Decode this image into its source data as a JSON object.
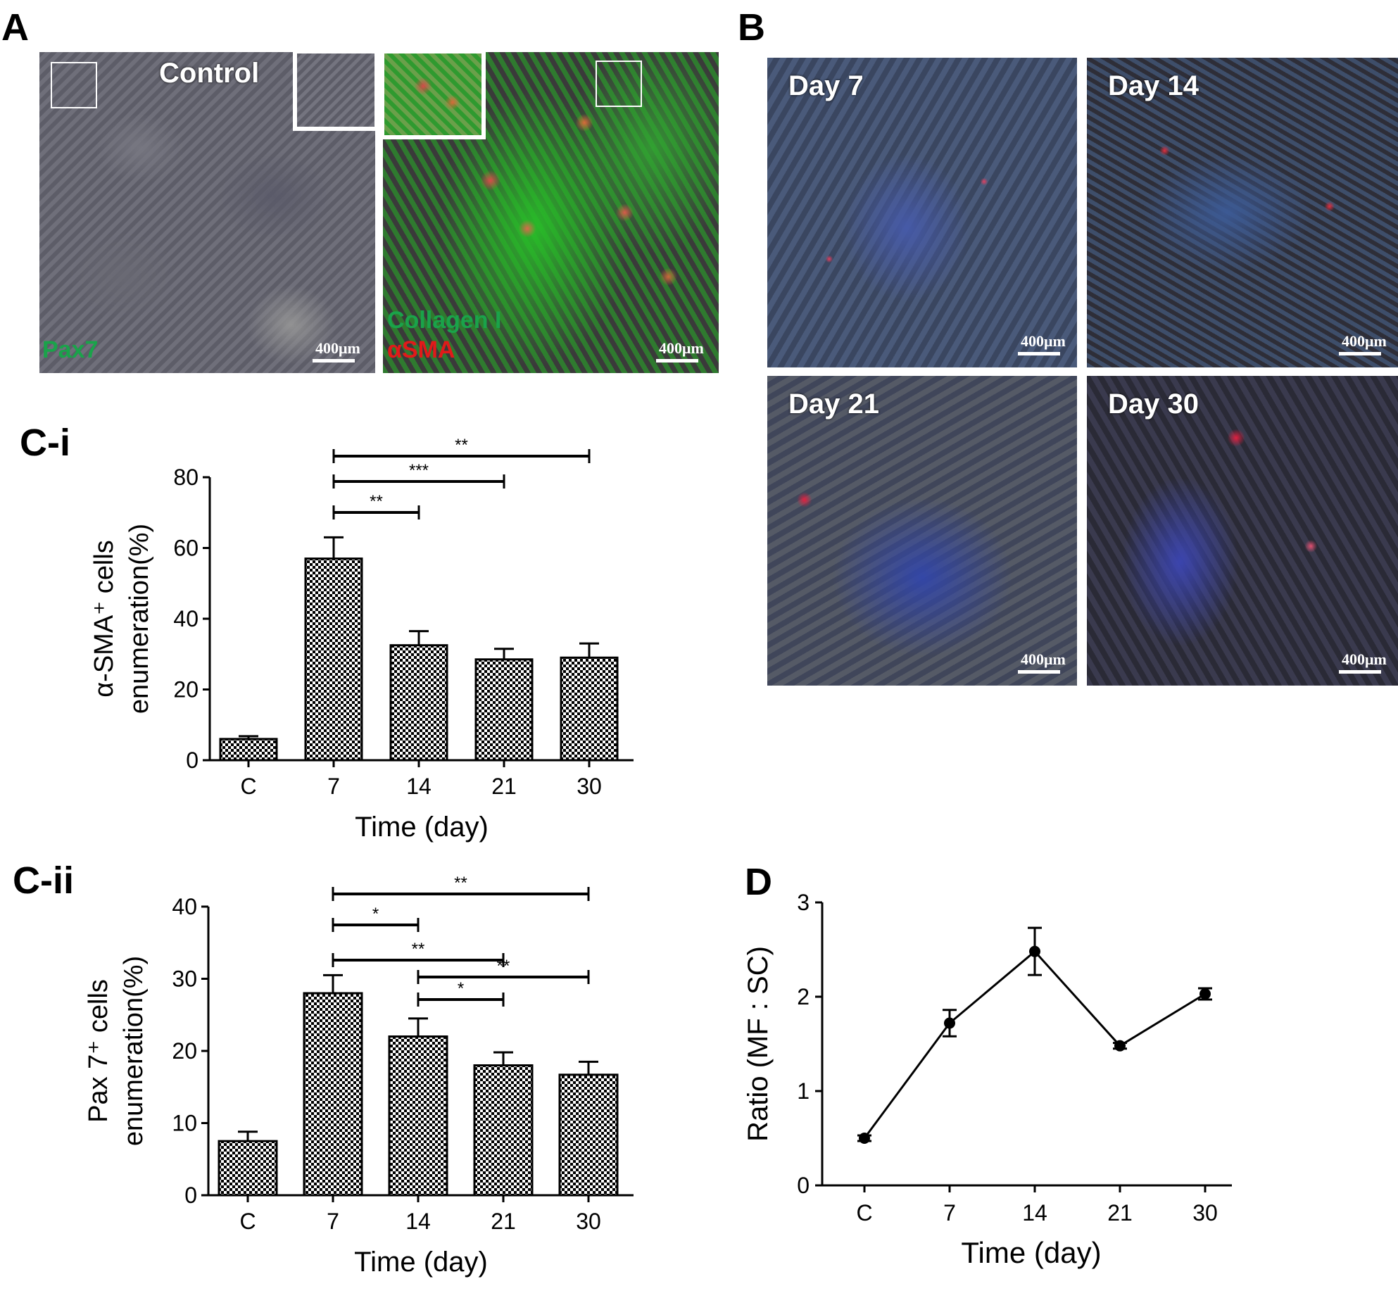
{
  "panels": {
    "A": {
      "letter": "A",
      "left_label": "Control",
      "left_stain": "Pax7",
      "right_stain_1": "Collagen I",
      "right_stain_2": "αSMA",
      "scale": "400μm"
    },
    "B": {
      "letter": "B",
      "tiles": [
        "Day 7",
        "Day 14",
        "Day 21",
        "Day 30"
      ],
      "scale": "400μm"
    },
    "Ci": {
      "letter": "C-i"
    },
    "Cii": {
      "letter": "C-ii"
    },
    "D": {
      "letter": "D"
    }
  },
  "chart_data": [
    {
      "id": "C-i",
      "type": "bar",
      "categories": [
        "C",
        "7",
        "14",
        "21",
        "30"
      ],
      "values": [
        6,
        57,
        32.5,
        28.5,
        29
      ],
      "errors": [
        0.8,
        6,
        4,
        3,
        4
      ],
      "xlabel": "Time (day)",
      "ylabel_line1": "α-SMA⁺ cells",
      "ylabel_line2": "enumeration(%)",
      "ylim": [
        0,
        80
      ],
      "yticks": [
        0,
        20,
        40,
        60,
        80
      ],
      "significance": [
        {
          "from": "7",
          "to": "14",
          "label": "**"
        },
        {
          "from": "7",
          "to": "21",
          "label": "***"
        },
        {
          "from": "7",
          "to": "30",
          "label": "**"
        }
      ],
      "pattern": "checkerboard"
    },
    {
      "id": "C-ii",
      "type": "bar",
      "categories": [
        "C",
        "7",
        "14",
        "21",
        "30"
      ],
      "values": [
        7.5,
        28,
        22,
        18,
        16.7
      ],
      "errors": [
        1.3,
        2.5,
        2.5,
        1.8,
        1.8
      ],
      "xlabel": "Time (day)",
      "ylabel_line1": "Pax 7⁺ cells",
      "ylabel_line2": "enumeration(%)",
      "ylim": [
        0,
        40
      ],
      "yticks": [
        0,
        10,
        20,
        30,
        40
      ],
      "significance": [
        {
          "from": "7",
          "to": "30",
          "label": "**"
        },
        {
          "from": "7",
          "to": "14",
          "label": "*"
        },
        {
          "from": "7",
          "to": "21",
          "label": "**"
        },
        {
          "from": "14",
          "to": "30",
          "label": "**"
        },
        {
          "from": "14",
          "to": "21",
          "label": "*"
        }
      ],
      "pattern": "checkerboard"
    },
    {
      "id": "D",
      "type": "line",
      "categories": [
        "C",
        "7",
        "14",
        "21",
        "30"
      ],
      "values": [
        0.5,
        1.72,
        2.48,
        1.48,
        2.03
      ],
      "errors": [
        0.03,
        0.14,
        0.25,
        0.03,
        0.06
      ],
      "xlabel": "Time (day)",
      "ylabel": "Ratio (MF : SC)",
      "ylim": [
        0,
        3
      ],
      "yticks": [
        0,
        1,
        2,
        3
      ]
    }
  ]
}
